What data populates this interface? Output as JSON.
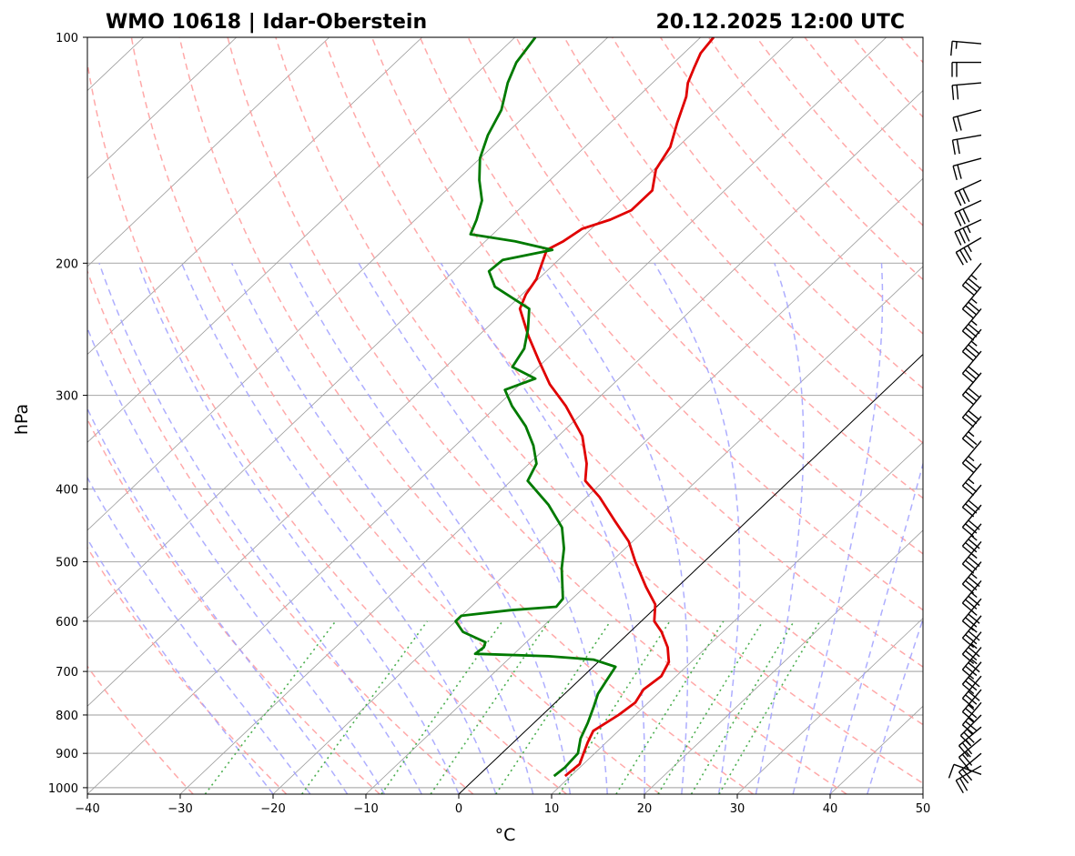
{
  "chart_data": {
    "type": "line",
    "subtype": "skew-T log-p sounding",
    "title_left": "WMO 10618 | Idar-Oberstein",
    "title_right": "20.12.2025 12:00 UTC",
    "xlabel": "°C",
    "ylabel": "hPa",
    "xlim": [
      -40,
      50
    ],
    "ylim": [
      1020,
      100
    ],
    "x_ticks": [
      -40,
      -30,
      -20,
      -10,
      0,
      10,
      20,
      30,
      40,
      50
    ],
    "x_tick_labels": [
      "−40",
      "−30",
      "−20",
      "−10",
      "0",
      "10",
      "20",
      "30",
      "40",
      "50"
    ],
    "y_ticks": [
      1000,
      900,
      800,
      700,
      600,
      500,
      400,
      300,
      200,
      100
    ],
    "y_tick_labels": [
      "1000",
      "900",
      "800",
      "700",
      "600",
      "500",
      "400",
      "300",
      "200",
      "100"
    ],
    "grid": true,
    "colors": {
      "temperature": "#e00000",
      "dewpoint": "#007a00",
      "dry_adiabats": "#ff9a9a",
      "moist_adiabats": "#a0a0ff",
      "mixing_ratio": "#4caf50",
      "isotherms": "#9a9a9a",
      "reference_line": "#000000",
      "grid": "#b0b0b0"
    },
    "series": [
      {
        "name": "Temperature",
        "points": [
          {
            "p": 965,
            "t": 9.4
          },
          {
            "p": 930,
            "t": 9.6
          },
          {
            "p": 900,
            "t": 8.8
          },
          {
            "p": 870,
            "t": 8.0
          },
          {
            "p": 840,
            "t": 7.3
          },
          {
            "p": 800,
            "t": 8.2
          },
          {
            "p": 770,
            "t": 8.6
          },
          {
            "p": 740,
            "t": 8.0
          },
          {
            "p": 710,
            "t": 8.4
          },
          {
            "p": 680,
            "t": 7.6
          },
          {
            "p": 650,
            "t": 5.8
          },
          {
            "p": 620,
            "t": 3.4
          },
          {
            "p": 600,
            "t": 1.4
          },
          {
            "p": 570,
            "t": -0.4
          },
          {
            "p": 540,
            "t": -3.4
          },
          {
            "p": 500,
            "t": -7.4
          },
          {
            "p": 470,
            "t": -10.4
          },
          {
            "p": 440,
            "t": -14.4
          },
          {
            "p": 410,
            "t": -18.6
          },
          {
            "p": 390,
            "t": -22.0
          },
          {
            "p": 370,
            "t": -23.8
          },
          {
            "p": 340,
            "t": -27.4
          },
          {
            "p": 310,
            "t": -32.6
          },
          {
            "p": 290,
            "t": -36.8
          },
          {
            "p": 270,
            "t": -40.6
          },
          {
            "p": 250,
            "t": -44.6
          },
          {
            "p": 230,
            "t": -48.6
          },
          {
            "p": 220,
            "t": -49.6
          },
          {
            "p": 210,
            "t": -50.2
          },
          {
            "p": 200,
            "t": -51.4
          },
          {
            "p": 192,
            "t": -52.4
          },
          {
            "p": 187,
            "t": -51.6
          },
          {
            "p": 180,
            "t": -51.0
          },
          {
            "p": 175,
            "t": -49.0
          },
          {
            "p": 170,
            "t": -47.8
          },
          {
            "p": 160,
            "t": -47.8
          },
          {
            "p": 150,
            "t": -49.8
          },
          {
            "p": 140,
            "t": -50.8
          },
          {
            "p": 130,
            "t": -52.8
          },
          {
            "p": 120,
            "t": -54.8
          },
          {
            "p": 115,
            "t": -56.2
          },
          {
            "p": 110,
            "t": -57.2
          },
          {
            "p": 105,
            "t": -58.2
          },
          {
            "p": 100,
            "t": -58.6
          }
        ]
      },
      {
        "name": "Dewpoint",
        "points": [
          {
            "p": 965,
            "t": 8.2
          },
          {
            "p": 940,
            "t": 8.4
          },
          {
            "p": 900,
            "t": 8.2
          },
          {
            "p": 860,
            "t": 6.8
          },
          {
            "p": 820,
            "t": 5.8
          },
          {
            "p": 780,
            "t": 4.6
          },
          {
            "p": 750,
            "t": 3.6
          },
          {
            "p": 720,
            "t": 3.0
          },
          {
            "p": 690,
            "t": 2.4
          },
          {
            "p": 675,
            "t": -0.8
          },
          {
            "p": 668,
            "t": -6.0
          },
          {
            "p": 663,
            "t": -14.2
          },
          {
            "p": 650,
            "t": -14.0
          },
          {
            "p": 640,
            "t": -14.4
          },
          {
            "p": 620,
            "t": -18.0
          },
          {
            "p": 600,
            "t": -20.0
          },
          {
            "p": 590,
            "t": -20.0
          },
          {
            "p": 580,
            "t": -15.4
          },
          {
            "p": 574,
            "t": -10.8
          },
          {
            "p": 560,
            "t": -11.0
          },
          {
            "p": 540,
            "t": -12.4
          },
          {
            "p": 510,
            "t": -14.6
          },
          {
            "p": 480,
            "t": -16.6
          },
          {
            "p": 450,
            "t": -19.2
          },
          {
            "p": 420,
            "t": -23.2
          },
          {
            "p": 390,
            "t": -28.2
          },
          {
            "p": 370,
            "t": -29.2
          },
          {
            "p": 350,
            "t": -31.6
          },
          {
            "p": 330,
            "t": -34.6
          },
          {
            "p": 310,
            "t": -38.4
          },
          {
            "p": 295,
            "t": -41.0
          },
          {
            "p": 285,
            "t": -39.0
          },
          {
            "p": 275,
            "t": -42.8
          },
          {
            "p": 260,
            "t": -43.6
          },
          {
            "p": 245,
            "t": -45.4
          },
          {
            "p": 230,
            "t": -47.6
          },
          {
            "p": 215,
            "t": -53.8
          },
          {
            "p": 205,
            "t": -56.2
          },
          {
            "p": 198,
            "t": -56.0
          },
          {
            "p": 192,
            "t": -51.8
          },
          {
            "p": 187,
            "t": -56.8
          },
          {
            "p": 183,
            "t": -62.4
          },
          {
            "p": 175,
            "t": -63.4
          },
          {
            "p": 165,
            "t": -65.0
          },
          {
            "p": 155,
            "t": -67.6
          },
          {
            "p": 145,
            "t": -70.0
          },
          {
            "p": 135,
            "t": -71.8
          },
          {
            "p": 125,
            "t": -73.2
          },
          {
            "p": 115,
            "t": -75.6
          },
          {
            "p": 108,
            "t": -77.0
          },
          {
            "p": 100,
            "t": -77.8
          }
        ]
      }
    ],
    "wind_barbs": [
      {
        "p": 960,
        "dir": 290,
        "speed_kt": 10
      },
      {
        "p": 935,
        "dir": 240,
        "speed_kt": 20
      },
      {
        "p": 900,
        "dir": 230,
        "speed_kt": 25
      },
      {
        "p": 860,
        "dir": 230,
        "speed_kt": 25
      },
      {
        "p": 830,
        "dir": 230,
        "speed_kt": 25
      },
      {
        "p": 800,
        "dir": 225,
        "speed_kt": 25
      },
      {
        "p": 770,
        "dir": 220,
        "speed_kt": 25
      },
      {
        "p": 740,
        "dir": 220,
        "speed_kt": 25
      },
      {
        "p": 710,
        "dir": 220,
        "speed_kt": 30
      },
      {
        "p": 680,
        "dir": 220,
        "speed_kt": 30
      },
      {
        "p": 650,
        "dir": 220,
        "speed_kt": 35
      },
      {
        "p": 620,
        "dir": 220,
        "speed_kt": 35
      },
      {
        "p": 590,
        "dir": 220,
        "speed_kt": 35
      },
      {
        "p": 560,
        "dir": 220,
        "speed_kt": 35
      },
      {
        "p": 530,
        "dir": 220,
        "speed_kt": 35
      },
      {
        "p": 500,
        "dir": 220,
        "speed_kt": 35
      },
      {
        "p": 470,
        "dir": 220,
        "speed_kt": 35
      },
      {
        "p": 445,
        "dir": 220,
        "speed_kt": 35
      },
      {
        "p": 420,
        "dir": 220,
        "speed_kt": 30
      },
      {
        "p": 395,
        "dir": 220,
        "speed_kt": 30
      },
      {
        "p": 370,
        "dir": 220,
        "speed_kt": 25
      },
      {
        "p": 345,
        "dir": 220,
        "speed_kt": 25
      },
      {
        "p": 320,
        "dir": 220,
        "speed_kt": 25
      },
      {
        "p": 300,
        "dir": 220,
        "speed_kt": 30
      },
      {
        "p": 280,
        "dir": 220,
        "speed_kt": 30
      },
      {
        "p": 262,
        "dir": 220,
        "speed_kt": 30
      },
      {
        "p": 245,
        "dir": 220,
        "speed_kt": 35
      },
      {
        "p": 230,
        "dir": 220,
        "speed_kt": 35
      },
      {
        "p": 215,
        "dir": 220,
        "speed_kt": 35
      },
      {
        "p": 200,
        "dir": 220,
        "speed_kt": 35
      },
      {
        "p": 185,
        "dir": 240,
        "speed_kt": 35
      },
      {
        "p": 175,
        "dir": 245,
        "speed_kt": 35
      },
      {
        "p": 165,
        "dir": 245,
        "speed_kt": 30
      },
      {
        "p": 155,
        "dir": 245,
        "speed_kt": 30
      },
      {
        "p": 145,
        "dir": 255,
        "speed_kt": 20
      },
      {
        "p": 135,
        "dir": 260,
        "speed_kt": 20
      },
      {
        "p": 125,
        "dir": 255,
        "speed_kt": 20
      },
      {
        "p": 115,
        "dir": 265,
        "speed_kt": 20
      },
      {
        "p": 108,
        "dir": 270,
        "speed_kt": 20
      },
      {
        "p": 102,
        "dir": 275,
        "speed_kt": 15
      }
    ]
  }
}
